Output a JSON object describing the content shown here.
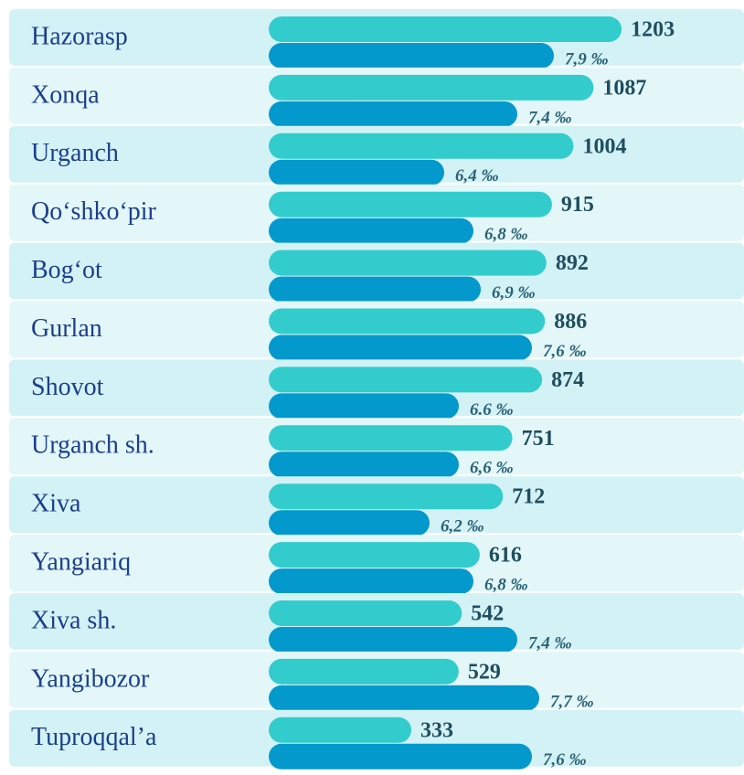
{
  "chart_data": {
    "type": "paired-bar",
    "categories": [
      "Hazorasp",
      "Xonqa",
      "Urganch",
      "Qo‘shko‘pir",
      "Bog‘ot",
      "Gurlan",
      "Shovot",
      "Urganch sh.",
      "Xiva",
      "Yangiariq",
      "Xiva sh.",
      "Yangibozor",
      "Tuproqqal’a"
    ],
    "series": [
      {
        "color": "#33cccc",
        "values": [
          1203,
          1087,
          1004,
          915,
          892,
          886,
          874,
          751,
          712,
          616,
          542,
          529,
          333
        ]
      },
      {
        "color": "#0399cc",
        "values": [
          7.9,
          7.4,
          6.4,
          6.8,
          6.9,
          7.6,
          6.6,
          6.6,
          6.2,
          6.8,
          7.4,
          7.7,
          7.6
        ],
        "value_labels": [
          "7,9 ‰",
          "7,4 ‰",
          "6,4 ‰",
          "6,8 ‰",
          "6,9 ‰",
          "7,6 ‰",
          "6.6 ‰",
          "6,6 ‰",
          "6,2 ‰",
          "6,8 ‰",
          "7,4 ‰",
          "7,7 ‰",
          "7,6 ‰"
        ]
      }
    ]
  }
}
